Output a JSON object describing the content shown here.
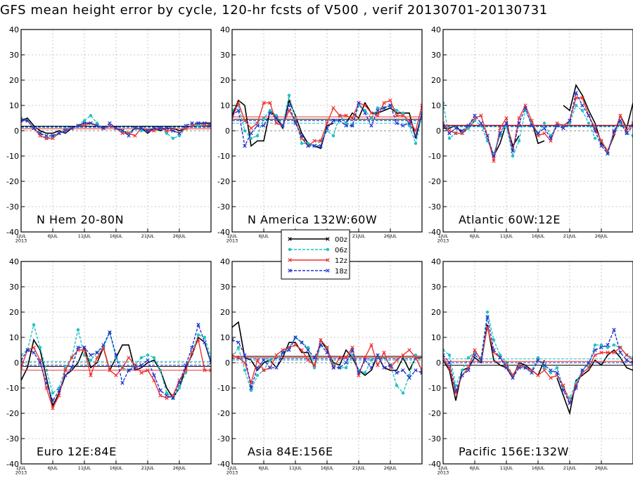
{
  "title": "GFS mean height error by cycle, 120-hr fcsts of V500 , verif 20130701-20130731",
  "legend": {
    "placement": "center",
    "entries": [
      {
        "label": "00z",
        "color": "#000000",
        "dash": "solid",
        "marker": "x"
      },
      {
        "label": "06z",
        "color": "#22c2c2",
        "dash": "dashed",
        "marker": "o"
      },
      {
        "label": "12z",
        "color": "#ee3333",
        "dash": "solid",
        "marker": "x"
      },
      {
        "label": "18z",
        "color": "#2233cc",
        "dash": "dashed",
        "marker": "x"
      }
    ]
  },
  "colors": {
    "grid": "#bbbbbb",
    "zero_line": "#888888"
  },
  "chart_data": [
    {
      "type": "line",
      "region": "N Hem 20-80N",
      "x_ticks": [
        "1JUL\n2013",
        "6JUL",
        "11JUL",
        "16JUL",
        "21JUL",
        "26JUL"
      ],
      "y_ticks": [
        "40",
        "30",
        "20",
        "10",
        "0",
        "-10",
        "-20",
        "-30",
        "-40"
      ],
      "xlim": [
        1,
        31
      ],
      "ylim": [
        -40,
        40
      ],
      "grid": true,
      "series": [
        {
          "name": "00z",
          "means": 1.8,
          "values": [
            4,
            5,
            2,
            0,
            -1,
            -1,
            0,
            -1,
            1,
            2,
            3,
            3,
            2,
            1,
            2,
            1,
            0,
            -1,
            1,
            1,
            -1,
            1,
            0,
            1,
            1,
            0,
            1,
            2,
            3,
            3,
            3
          ]
        },
        {
          "name": "06z",
          "means": 1.2,
          "values": [
            5,
            4,
            1,
            -1,
            -3,
            -2,
            -1,
            1,
            1,
            2,
            4,
            6,
            3,
            1,
            2,
            1,
            0,
            -1,
            1,
            0,
            0,
            1,
            1,
            -1,
            -3,
            -2,
            1,
            2,
            2,
            2,
            2
          ]
        },
        {
          "name": "12z",
          "means": 0.8,
          "values": [
            4,
            4,
            1,
            -2,
            -3,
            -3,
            -1,
            0,
            1,
            2,
            2,
            3,
            2,
            1,
            2,
            1,
            -1,
            -1,
            -2,
            1,
            0,
            0,
            1,
            0,
            0,
            -1,
            1,
            2,
            3,
            2,
            2
          ]
        },
        {
          "name": "18z",
          "means": 1.5,
          "values": [
            4,
            4,
            1,
            -1,
            -2,
            -2,
            -1,
            0,
            1,
            2,
            3,
            3,
            2,
            1,
            3,
            1,
            0,
            -2,
            1,
            1,
            0,
            1,
            1,
            1,
            0,
            -1,
            2,
            3,
            3,
            3,
            2
          ]
        }
      ]
    },
    {
      "type": "line",
      "region": "N America 132W:60W",
      "x_ticks": [
        "1JUL\n2013",
        "6JUL",
        "11JUL",
        "16JUL",
        "21JUL",
        "26JUL"
      ],
      "y_ticks": [
        "40",
        "30",
        "20",
        "10",
        "0",
        "-10",
        "-20",
        "-30",
        "-40"
      ],
      "xlim": [
        1,
        31
      ],
      "ylim": [
        -40,
        40
      ],
      "grid": true,
      "series": [
        {
          "name": "00z",
          "means": 4.5,
          "values": [
            6,
            12,
            10,
            -6,
            -4,
            -4,
            8,
            5,
            1,
            12,
            6,
            -1,
            -5,
            -6,
            -7,
            2,
            3,
            null,
            3,
            7,
            5,
            11,
            7,
            7,
            8,
            9,
            7,
            7,
            7,
            -3,
            7
          ]
        },
        {
          "name": "06z",
          "means": 3.0,
          "values": [
            8,
            10,
            0,
            -3,
            -2,
            5,
            8,
            6,
            2,
            14,
            5,
            -5,
            -5,
            -6,
            -4,
            0,
            -2,
            6,
            3,
            2,
            10,
            8,
            5,
            9,
            9,
            10,
            8,
            7,
            2,
            -5,
            6
          ]
        },
        {
          "name": "12z",
          "means": 5.5,
          "values": [
            5,
            11,
            4,
            1,
            3,
            11,
            11,
            3,
            2,
            8,
            4,
            -3,
            -6,
            -4,
            -4,
            3,
            9,
            6,
            6,
            5,
            11,
            10,
            7,
            6,
            11,
            12,
            6,
            6,
            4,
            0,
            10
          ]
        },
        {
          "name": "18z",
          "means": 4.0,
          "values": [
            6,
            8,
            -6,
            -1,
            2,
            2,
            7,
            5,
            2,
            10,
            3,
            -2,
            -6,
            -6,
            -6,
            1,
            4,
            4,
            2,
            2,
            11,
            7,
            2,
            8,
            9,
            10,
            3,
            2,
            3,
            -2,
            7
          ]
        }
      ]
    },
    {
      "type": "line",
      "region": "Atlantic 60W:12E",
      "x_ticks": [
        "1JUL\n2013",
        "6JUL",
        "11JUL",
        "16JUL",
        "21JUL",
        "26JUL"
      ],
      "y_ticks": [
        "40",
        "30",
        "20",
        "10",
        "0",
        "-10",
        "-20",
        "-30",
        "-40"
      ],
      "xlim": [
        1,
        31
      ],
      "ylim": [
        -40,
        40
      ],
      "grid": true,
      "series": [
        {
          "name": "00z",
          "means": 2.0,
          "values": [
            1,
            1,
            2,
            -1,
            1,
            4,
            null,
            -3,
            -10,
            -5,
            3,
            -6,
            -2,
            null,
            4,
            -5,
            -4,
            null,
            null,
            10,
            8,
            18,
            14,
            8,
            3,
            -5,
            -8,
            -2,
            6,
            1,
            11
          ]
        },
        {
          "name": "06z",
          "means": 1.5,
          "values": [
            11,
            -3,
            -1,
            -1,
            1,
            4,
            2,
            -4,
            -9,
            -2,
            2,
            -10,
            -4,
            8,
            3,
            -1,
            3,
            -2,
            2,
            2,
            3,
            10,
            8,
            3,
            -3,
            -4,
            -9,
            -1,
            3,
            -1,
            -2
          ]
        },
        {
          "name": "12z",
          "means": 2.2,
          "values": [
            3,
            0,
            -1,
            -1,
            2,
            5,
            6,
            -2,
            -12,
            1,
            5,
            -8,
            5,
            10,
            4,
            -2,
            -1,
            -4,
            3,
            2,
            4,
            13,
            13,
            6,
            1,
            -4,
            -8,
            -1,
            6,
            0,
            3
          ]
        },
        {
          "name": "18z",
          "means": 1.8,
          "values": [
            2,
            -1,
            1,
            0,
            2,
            6,
            3,
            -2,
            -10,
            -1,
            3,
            -8,
            3,
            9,
            2,
            -1,
            1,
            -3,
            2,
            1,
            4,
            15,
            10,
            6,
            0,
            -6,
            -9,
            0,
            4,
            -1,
            2
          ]
        }
      ]
    },
    {
      "type": "line",
      "region": "Euro 12E:84E",
      "x_ticks": [
        "1JUL\n2013",
        "6JUL",
        "11JUL",
        "16JUL",
        "21JUL",
        "26JUL"
      ],
      "y_ticks": [
        "40",
        "30",
        "20",
        "10",
        "0",
        "-10",
        "-20",
        "-30",
        "-40"
      ],
      "xlim": [
        1,
        31
      ],
      "ylim": [
        -40,
        40
      ],
      "grid": true,
      "series": [
        {
          "name": "00z",
          "means": -1.5,
          "values": [
            -7,
            -2,
            9,
            5,
            -6,
            -17,
            -12,
            -5,
            -3,
            0,
            6,
            -2,
            0,
            6,
            -3,
            2,
            7,
            7,
            -3,
            -2,
            0,
            1,
            -3,
            -10,
            -14,
            -10,
            -2,
            3,
            10,
            8,
            0
          ]
        },
        {
          "name": "06z",
          "means": 0.5,
          "values": [
            3,
            5,
            15,
            6,
            -3,
            -12,
            -10,
            -2,
            2,
            13,
            3,
            1,
            4,
            6,
            12,
            2,
            -2,
            -3,
            -1,
            2,
            3,
            2,
            -3,
            -12,
            -14,
            -10,
            -4,
            4,
            11,
            10,
            2
          ]
        },
        {
          "name": "12z",
          "means": -3.0,
          "values": [
            -2,
            5,
            6,
            1,
            -10,
            -18,
            -13,
            -3,
            2,
            5,
            5,
            -5,
            2,
            6,
            -3,
            -5,
            -2,
            2,
            -1,
            -4,
            -3,
            -7,
            -13,
            -14,
            -13,
            -7,
            -3,
            4,
            9,
            -3,
            -3
          ]
        },
        {
          "name": "18z",
          "means": -1.0,
          "values": [
            1,
            5,
            4,
            0,
            -8,
            -15,
            -11,
            -5,
            -2,
            6,
            6,
            3,
            4,
            7,
            12,
            3,
            -8,
            -3,
            -2,
            -1,
            1,
            -5,
            -11,
            -13,
            -14,
            -8,
            -1,
            6,
            15,
            8,
            0
          ]
        }
      ]
    },
    {
      "type": "line",
      "region": "Asia 84E:156E",
      "x_ticks": [
        "1JUL\n2013",
        "6JUL",
        "11JUL",
        "16JUL",
        "21JUL",
        "26JUL"
      ],
      "y_ticks": [
        "40",
        "30",
        "20",
        "10",
        "0",
        "-10",
        "-20",
        "-30",
        "-40"
      ],
      "xlim": [
        1,
        31
      ],
      "ylim": [
        -40,
        40
      ],
      "grid": true,
      "series": [
        {
          "name": "00z",
          "means": 2.5,
          "values": [
            14,
            16,
            2,
            1,
            -3,
            0,
            1,
            -2,
            2,
            8,
            8,
            4,
            4,
            -2,
            9,
            5,
            0,
            -1,
            5,
            2,
            -3,
            -5,
            -3,
            3,
            -2,
            -3,
            -3,
            2,
            -3,
            2,
            2
          ]
        },
        {
          "name": "06z",
          "means": 1.0,
          "values": [
            2,
            6,
            -3,
            -11,
            -5,
            -3,
            1,
            2,
            4,
            6,
            10,
            8,
            6,
            -2,
            7,
            6,
            -1,
            -2,
            -2,
            3,
            -3,
            -4,
            1,
            2,
            2,
            -1,
            -9,
            -12,
            -5,
            3,
            -4
          ]
        },
        {
          "name": "12z",
          "means": 2.0,
          "values": [
            3,
            2,
            0,
            -8,
            1,
            -3,
            -2,
            3,
            5,
            6,
            7,
            5,
            1,
            -1,
            9,
            6,
            -2,
            2,
            2,
            6,
            -5,
            2,
            7,
            -1,
            4,
            -2,
            1,
            3,
            5,
            2,
            -3
          ]
        },
        {
          "name": "18z",
          "means": 1.5,
          "values": [
            9,
            8,
            3,
            -10,
            -2,
            1,
            -2,
            -2,
            4,
            5,
            10,
            8,
            5,
            2,
            7,
            4,
            -2,
            -2,
            0,
            5,
            -4,
            1,
            -2,
            3,
            -2,
            -1,
            -4,
            -3,
            -6,
            -3,
            -4
          ]
        }
      ]
    },
    {
      "type": "line",
      "region": "Pacific 156E:132W",
      "x_ticks": [
        "1JUL\n2013",
        "6JUL",
        "11JUL",
        "16JUL",
        "21JUL",
        "26JUL"
      ],
      "y_ticks": [
        "40",
        "30",
        "20",
        "10",
        "0",
        "-10",
        "-20",
        "-30",
        "-40"
      ],
      "xlim": [
        1,
        31
      ],
      "ylim": [
        -40,
        40
      ],
      "grid": true,
      "series": [
        {
          "name": "00z",
          "means": -1.0,
          "values": [
            1,
            -3,
            -15,
            -3,
            -2,
            2,
            0,
            15,
            1,
            -1,
            -2,
            -6,
            0,
            -1,
            -3,
            -5,
            1,
            null,
            -6,
            -13,
            -20,
            -7,
            -5,
            -3,
            1,
            -1,
            3,
            5,
            2,
            -2,
            -3
          ]
        },
        {
          "name": "06z",
          "means": 1.5,
          "values": [
            5,
            3,
            -9,
            -3,
            2,
            4,
            2,
            20,
            9,
            3,
            0,
            -5,
            -1,
            -2,
            -3,
            2,
            -2,
            -4,
            -2,
            -10,
            -14,
            -8,
            -3,
            -1,
            7,
            7,
            6,
            7,
            6,
            3,
            2
          ]
        },
        {
          "name": "12z",
          "means": 0.5,
          "values": [
            2,
            -2,
            -12,
            -5,
            -2,
            5,
            1,
            14,
            4,
            2,
            -1,
            -5,
            -1,
            -2,
            -3,
            -5,
            -3,
            -6,
            -5,
            -9,
            -16,
            -9,
            -4,
            -2,
            3,
            4,
            4,
            4,
            6,
            3,
            1
          ]
        },
        {
          "name": "18z",
          "means": 0.0,
          "values": [
            3,
            0,
            -11,
            -5,
            -3,
            3,
            1,
            18,
            5,
            2,
            -2,
            -6,
            -2,
            -2,
            -4,
            1,
            -1,
            -3,
            -4,
            -11,
            -16,
            -10,
            -3,
            0,
            5,
            6,
            7,
            13,
            4,
            1,
            0
          ]
        }
      ]
    }
  ]
}
